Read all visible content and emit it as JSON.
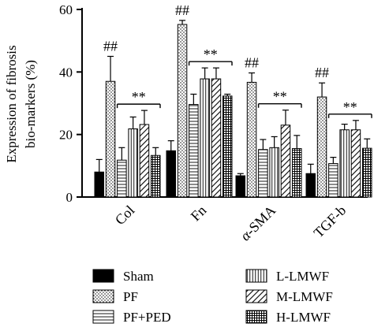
{
  "chart_data": {
    "type": "bar",
    "ylabel": "Expression of fibrosis bio-markers (%)",
    "ylabel_lines": [
      "Expression of fibrosis",
      "bio-markers (%)"
    ],
    "ylim": [
      0,
      60
    ],
    "yticks": [
      "0",
      "20",
      "40",
      "60"
    ],
    "categories": [
      "Col",
      "Fn",
      "α-SMA",
      "TGF-b"
    ],
    "series": [
      {
        "name": "Sham",
        "pattern": "solid",
        "values": [
          8.0,
          14.8,
          6.8,
          7.5
        ],
        "errors": [
          4.0,
          3.2,
          0.7,
          3.0
        ]
      },
      {
        "name": "PF",
        "pattern": "dots",
        "values": [
          37.0,
          55.2,
          36.7,
          32.0
        ],
        "errors": [
          8.0,
          1.3,
          3.0,
          4.5
        ]
      },
      {
        "name": "PF+PED",
        "pattern": "hlines",
        "values": [
          11.8,
          29.6,
          15.2,
          10.7
        ],
        "errors": [
          4.0,
          3.3,
          3.2,
          2.0
        ]
      },
      {
        "name": "L-LMWF",
        "pattern": "vlines",
        "values": [
          21.8,
          37.8,
          15.8,
          21.5
        ],
        "errors": [
          3.8,
          3.5,
          3.5,
          1.8
        ]
      },
      {
        "name": "M-LMWF",
        "pattern": "diagonal",
        "values": [
          23.2,
          37.8,
          23.0,
          21.5
        ],
        "errors": [
          4.5,
          3.5,
          4.8,
          3.0
        ]
      },
      {
        "name": "H-LMWF",
        "pattern": "grid",
        "values": [
          13.3,
          32.3,
          15.5,
          15.6
        ],
        "errors": [
          2.5,
          0.6,
          4.2,
          3.0
        ]
      }
    ],
    "annotations": {
      "pf_marks": [
        "##",
        "##",
        "##",
        "##"
      ],
      "treatment_marks": [
        "**",
        "**",
        "**",
        "**"
      ]
    },
    "legend_position": "bottom",
    "grid": false
  }
}
